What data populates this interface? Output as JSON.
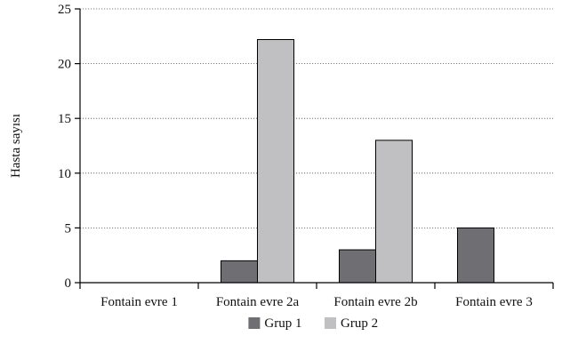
{
  "chart_data": {
    "type": "bar",
    "ylabel": "Hasta sayısı",
    "xlabel": "",
    "ylim": [
      0,
      25
    ],
    "yticks": [
      0,
      5,
      10,
      15,
      20,
      25
    ],
    "grid": true,
    "legend_position": "bottom",
    "categories": [
      "Fontain evre 1",
      "Fontain evre 2a",
      "Fontain evre 2b",
      "Fontain evre 3"
    ],
    "series": [
      {
        "name": "Grup 1",
        "color": "#6f6f73",
        "values": [
          0,
          2,
          3,
          5
        ]
      },
      {
        "name": "Grup 2",
        "color": "#c0c0c2",
        "values": [
          0,
          22.2,
          13,
          0
        ]
      }
    ]
  }
}
